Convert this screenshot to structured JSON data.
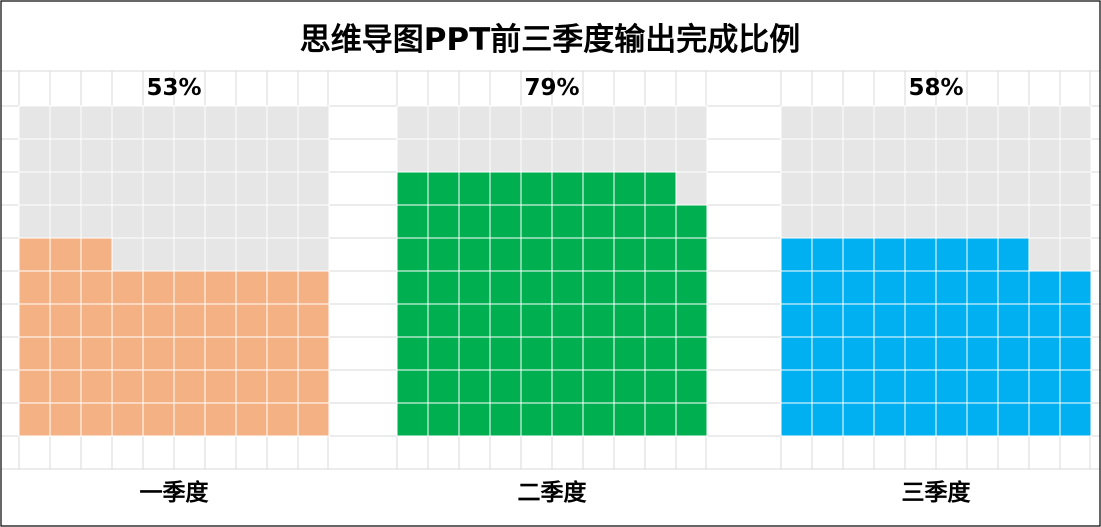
{
  "chart_data": {
    "type": "waffle",
    "title": "思维导图PPT前三季度输出完成比例",
    "grid_rows": 10,
    "grid_cols": 10,
    "series": [
      {
        "category": "一季度",
        "value": 53,
        "label": "53%",
        "color": "#F4B183"
      },
      {
        "category": "二季度",
        "value": 79,
        "label": "79%",
        "color": "#00B050"
      },
      {
        "category": "三季度",
        "value": 58,
        "label": "58%",
        "color": "#00B0F0"
      }
    ],
    "empty_color": "#E6E6E6",
    "cell_border_color": "#FFFFFF",
    "sheet_grid_color": "#D9D9D9"
  }
}
